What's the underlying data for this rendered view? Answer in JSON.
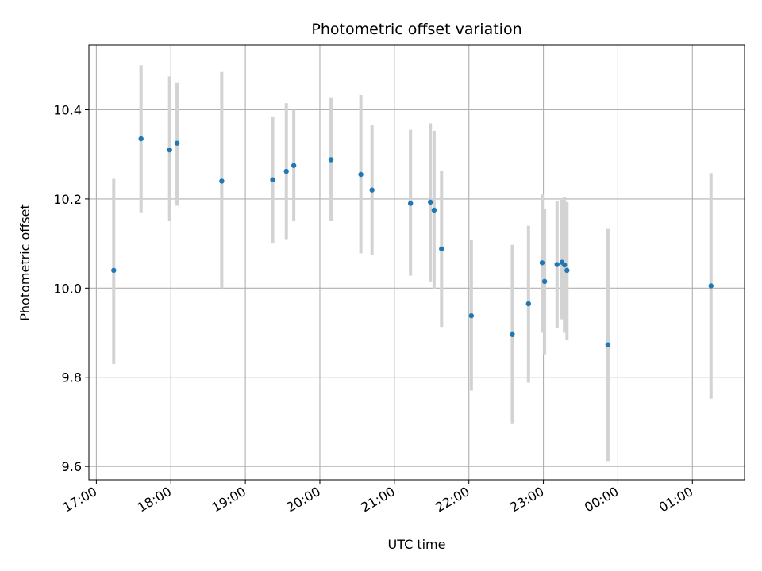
{
  "chart_data": {
    "type": "scatter",
    "title": "Photometric offset variation",
    "xlabel": "UTC time",
    "ylabel": "Photometric offset",
    "x_ticks": [
      "17:00",
      "18:00",
      "19:00",
      "20:00",
      "21:00",
      "22:00",
      "23:00",
      "00:00",
      "01:00"
    ],
    "y_ticks": [
      "9.6",
      "9.8",
      "10.0",
      "10.2",
      "10.4"
    ],
    "xlim_hours": [
      16.9,
      25.7
    ],
    "ylim": [
      9.57,
      10.545
    ],
    "grid": true,
    "colors": {
      "points": "#1f77b4",
      "errorbars": "#d3d3d3",
      "grid": "#b0b0b0"
    },
    "points": [
      {
        "time": "17:14",
        "value": 10.04,
        "low": 9.83,
        "high": 10.245
      },
      {
        "time": "17:36",
        "value": 10.335,
        "low": 10.17,
        "high": 10.5
      },
      {
        "time": "17:59",
        "value": 10.31,
        "low": 10.15,
        "high": 10.475
      },
      {
        "time": "18:05",
        "value": 10.325,
        "low": 10.185,
        "high": 10.46
      },
      {
        "time": "18:41",
        "value": 10.24,
        "low": 10.0,
        "high": 10.485
      },
      {
        "time": "19:22",
        "value": 10.243,
        "low": 10.1,
        "high": 10.385
      },
      {
        "time": "19:33",
        "value": 10.262,
        "low": 10.11,
        "high": 10.415
      },
      {
        "time": "19:39",
        "value": 10.275,
        "low": 10.15,
        "high": 10.4
      },
      {
        "time": "20:09",
        "value": 10.288,
        "low": 10.15,
        "high": 10.428
      },
      {
        "time": "20:33",
        "value": 10.255,
        "low": 10.078,
        "high": 10.433
      },
      {
        "time": "20:42",
        "value": 10.22,
        "low": 10.075,
        "high": 10.365
      },
      {
        "time": "21:13",
        "value": 10.19,
        "low": 10.028,
        "high": 10.355
      },
      {
        "time": "21:29",
        "value": 10.193,
        "low": 10.015,
        "high": 10.37
      },
      {
        "time": "21:32",
        "value": 10.175,
        "low": 9.998,
        "high": 10.353
      },
      {
        "time": "21:38",
        "value": 10.088,
        "low": 9.913,
        "high": 10.263
      },
      {
        "time": "22:02",
        "value": 9.938,
        "low": 9.77,
        "high": 10.108
      },
      {
        "time": "22:35",
        "value": 9.896,
        "low": 9.695,
        "high": 10.097
      },
      {
        "time": "22:48",
        "value": 9.965,
        "low": 9.788,
        "high": 10.14
      },
      {
        "time": "22:59",
        "value": 10.057,
        "low": 9.9,
        "high": 10.21
      },
      {
        "time": "23:01",
        "value": 10.015,
        "low": 9.85,
        "high": 10.178
      },
      {
        "time": "23:11",
        "value": 10.053,
        "low": 9.91,
        "high": 10.196
      },
      {
        "time": "23:15",
        "value": 10.058,
        "low": 9.93,
        "high": 10.198
      },
      {
        "time": "23:17",
        "value": 10.052,
        "low": 9.9,
        "high": 10.205
      },
      {
        "time": "23:19",
        "value": 10.04,
        "low": 9.883,
        "high": 10.193
      },
      {
        "time": "23:52",
        "value": 9.873,
        "low": 9.612,
        "high": 10.133
      },
      {
        "time": "01:15",
        "value": 10.005,
        "low": 9.752,
        "high": 10.258
      }
    ]
  }
}
